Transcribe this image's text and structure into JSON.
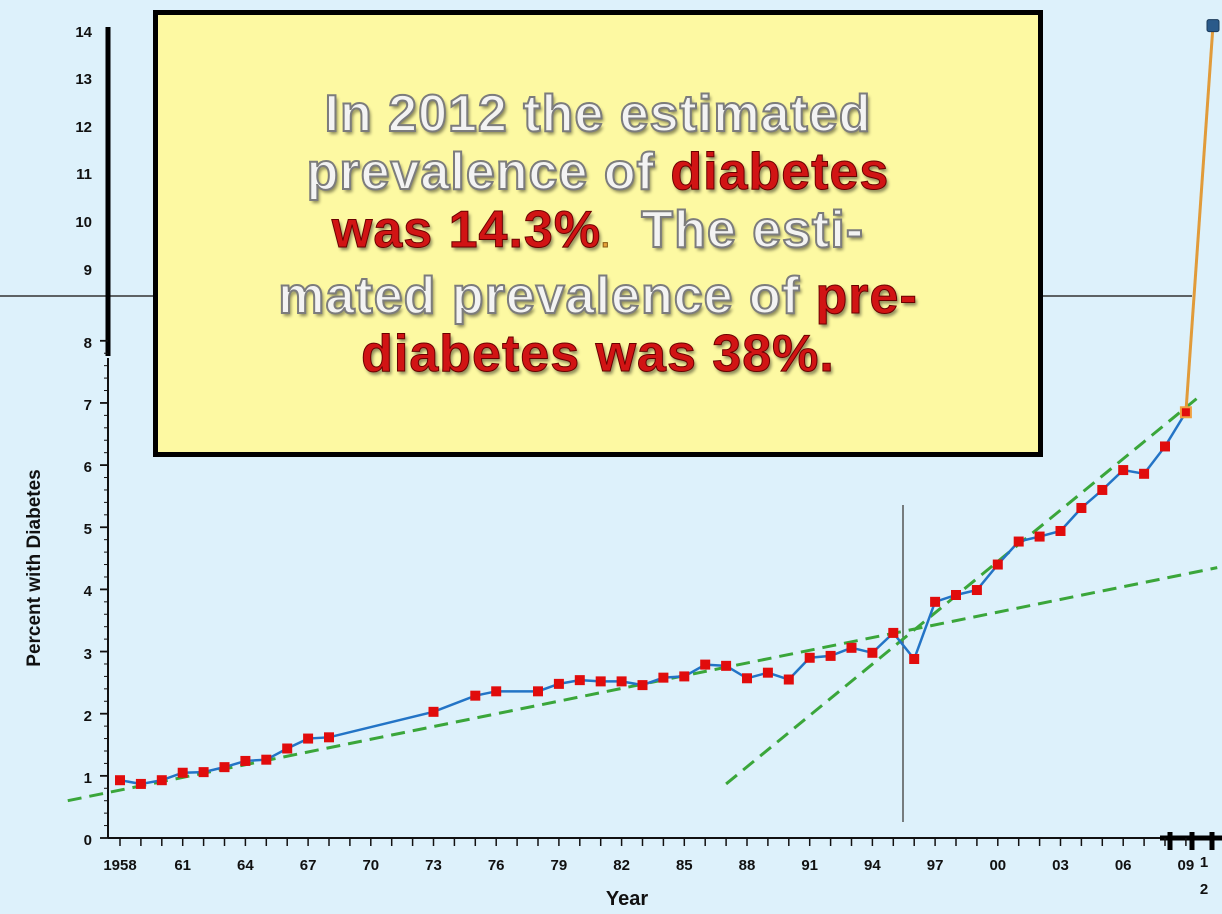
{
  "chart_data": {
    "type": "line",
    "xlabel": "Year",
    "ylabel": "Percent with Diabetes",
    "ylim": [
      0,
      14
    ],
    "yticks": [
      "0",
      "1",
      "2",
      "3",
      "4",
      "5",
      "6",
      "7",
      "8",
      "9",
      "10",
      "11",
      "12",
      "13",
      "14"
    ],
    "xticks": [
      "1958",
      "61",
      "64",
      "67",
      "70",
      "73",
      "76",
      "79",
      "82",
      "85",
      "88",
      "91",
      "94",
      "97",
      "00",
      "03",
      "06",
      "09"
    ],
    "extra_xtick": [
      "1",
      "2"
    ],
    "grid": false,
    "series": [
      {
        "x": [
          1958,
          1959,
          1960,
          1961,
          1962,
          1963,
          1964,
          1965,
          1966,
          1967,
          1968,
          1973,
          1975,
          1976,
          1978,
          1979,
          1980,
          1981,
          1982,
          1983,
          1984,
          1985,
          1986,
          1987,
          1988,
          1989,
          1990,
          1991,
          1992,
          1993,
          1994,
          1995,
          1996,
          1997,
          1998,
          1999,
          2000,
          2001,
          2002,
          2003,
          2004,
          2005,
          2006,
          2007,
          2008,
          2009
        ],
        "y": [
          0.93,
          0.87,
          0.93,
          1.05,
          1.06,
          1.14,
          1.24,
          1.26,
          1.44,
          1.6,
          1.62,
          2.03,
          2.29,
          2.36,
          2.36,
          2.48,
          2.54,
          2.52,
          2.52,
          2.46,
          2.58,
          2.6,
          2.79,
          2.77,
          2.57,
          2.66,
          2.55,
          2.9,
          2.93,
          3.06,
          2.98,
          3.3,
          2.88,
          3.8,
          3.91,
          3.99,
          4.4,
          4.77,
          4.85,
          4.94,
          5.31,
          5.6,
          5.92,
          5.86,
          6.3,
          6.85
        ],
        "color": "#2374c6"
      },
      {
        "x": [
          2009,
          2012
        ],
        "y": [
          6.85,
          14.3
        ],
        "color": "#e19b3a"
      }
    ],
    "trendlines": [
      {
        "x": [
          1955.5,
          2010.5
        ],
        "y": [
          0.6,
          4.35
        ]
      },
      {
        "x": [
          1987,
          2009.7
        ],
        "y": [
          0.87,
          7.12
        ]
      }
    ],
    "annotation": {
      "text_parts": [
        [
          {
            "t": "In 2012 the estimated",
            "s": "silver"
          }
        ],
        [
          {
            "t": "prevalence of ",
            "s": "silver"
          },
          {
            "t": "diabetes",
            "s": "red"
          }
        ],
        [
          {
            "t": "was 14.3%",
            "s": "red"
          },
          {
            "t": ".",
            "s": "orange"
          },
          {
            "t": "  The esti-",
            "s": "silver"
          }
        ],
        [
          {
            "t": "mated prevalence of ",
            "s": "silver"
          },
          {
            "t": "pre-",
            "s": "red"
          }
        ],
        [
          {
            "t": "diabetes was 38%.",
            "s": "red"
          }
        ]
      ]
    },
    "colors": {
      "background": "#ddf1fb",
      "marker": "#e10c0c",
      "trend": "#3aa63a",
      "callout": "#fdf9a2",
      "endpoint": "#2a5a8a"
    }
  }
}
